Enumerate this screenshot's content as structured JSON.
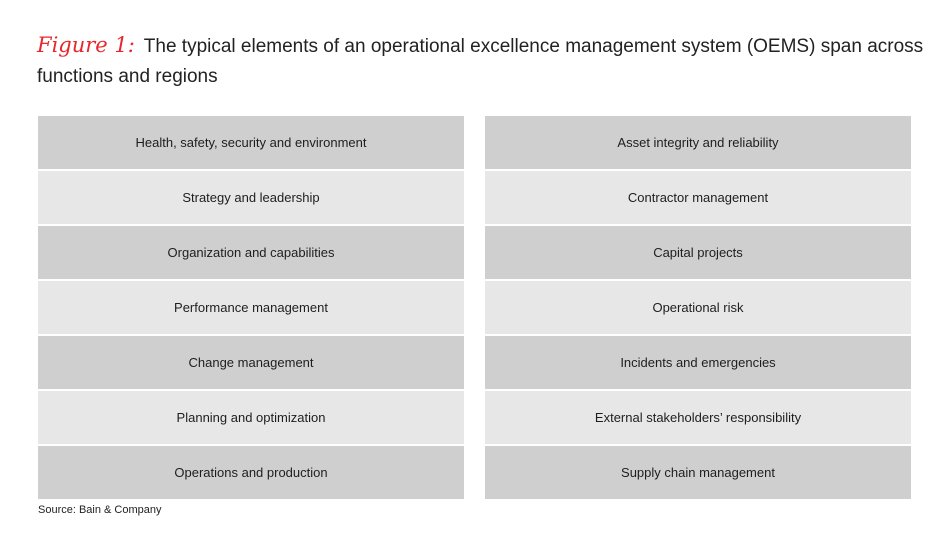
{
  "figure": {
    "label": "Figure 1:",
    "title": "The typical elements of an operational excellence management system (OEMS) span across functions and regions"
  },
  "left_column": [
    "Health, safety, security and environment",
    "Strategy and leadership",
    "Organization and capabilities",
    "Performance management",
    "Change management",
    "Planning and optimization",
    "Operations and production"
  ],
  "right_column": [
    "Asset integrity and reliability",
    "Contractor management",
    "Capital projects",
    "Operational risk",
    "Incidents and emergencies",
    "External stakeholders’ responsibility",
    "Supply chain management"
  ],
  "source": "Source: Bain & Company",
  "colors": {
    "accent": "#e8272c",
    "cell_dark": "#cfcfcf",
    "cell_light": "#e7e7e7"
  }
}
